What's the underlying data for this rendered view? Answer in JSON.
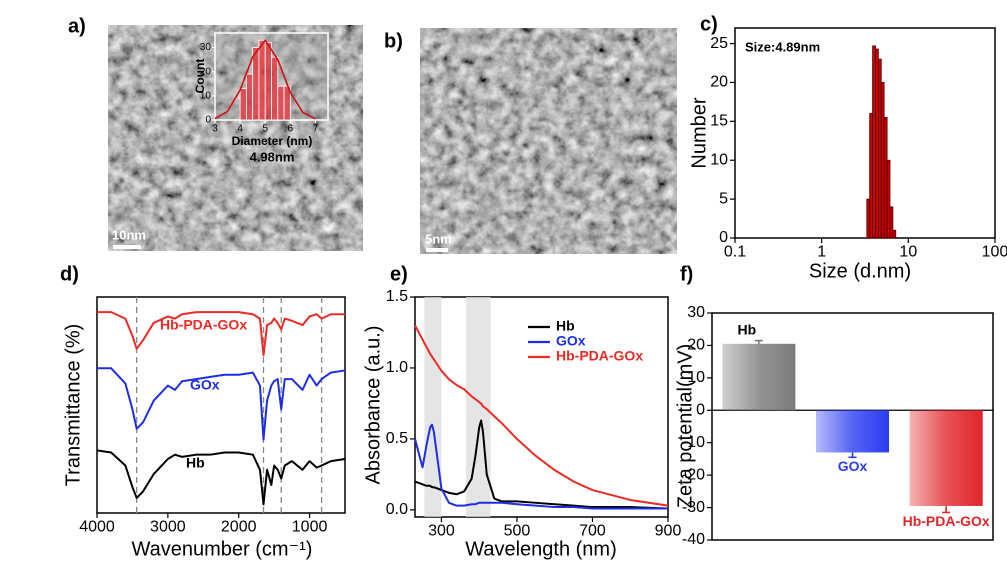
{
  "images": [
    {
      "label": "a)",
      "scale_bar": "10nm"
    },
    {
      "label": "b)",
      "scale_bar": "5nm"
    }
  ],
  "chart_data": [
    {
      "type": "histogram",
      "xlabel": "Diameter (nm)",
      "ylabel": "Count",
      "annotation": "4.98nm",
      "color": "#e8333a",
      "bins": [
        4,
        4.25,
        4.5,
        4.75,
        5,
        5.25,
        5.5,
        5.75,
        6
      ],
      "values": [
        13,
        19,
        30,
        33,
        32,
        26,
        14,
        14
      ],
      "fit": {
        "x": [
          3,
          3.5,
          4,
          4.5,
          5,
          5.5,
          6,
          6.5,
          7
        ],
        "values": [
          0.6,
          3.55,
          12.4,
          26.1,
          33,
          25,
          11.4,
          3.1,
          0.5
        ]
      },
      "xlim": [
        3,
        7.5
      ],
      "xticks": [
        3,
        4,
        5,
        6,
        7
      ],
      "ylim": [
        0,
        36
      ],
      "yticks": [
        0,
        10,
        20,
        30
      ]
    },
    {
      "type": "histogram",
      "label": "c)",
      "xlabel": "Size (d.nm)",
      "ylabel": "Number",
      "annotation": "Size:4.89nm",
      "color": "#cc0000",
      "log": true,
      "bins": [
        3.32,
        3.58,
        3.87,
        4.18,
        4.51,
        4.87,
        5.26,
        5.69,
        6.14,
        6.63,
        7.16
      ],
      "values": [
        5,
        16,
        24.7,
        24.3,
        23,
        20,
        15.5,
        10,
        4,
        1
      ],
      "xlim": [
        0.1,
        100
      ],
      "xticks": [
        0.1,
        1,
        10,
        100
      ],
      "ylim": [
        0,
        27
      ],
      "yticks": [
        0,
        5,
        10,
        15,
        20,
        25
      ]
    },
    {
      "type": "line",
      "label": "d)",
      "xlabel": "Wavenumber (cm⁻¹)",
      "ylabel": "Transmittance (%)",
      "legend": "inline",
      "x": [
        4000,
        3800,
        3600,
        3500,
        3440,
        3350,
        3200,
        3000,
        2900,
        2800,
        2600,
        2400,
        2200,
        2000,
        1800,
        1700,
        1650,
        1600,
        1540,
        1500,
        1450,
        1400,
        1350,
        1250,
        1100,
        1000,
        900,
        830,
        700,
        500
      ],
      "series": [
        {
          "name": "Hb-PDA-GOx",
          "color": "#ee2a24",
          "values": [
            93,
            93,
            90,
            82,
            76,
            80,
            88,
            91,
            90,
            92,
            93,
            93,
            93,
            93,
            92,
            90,
            73,
            87,
            88,
            90,
            88,
            85,
            90,
            89,
            87,
            91,
            92,
            90,
            92,
            92
          ]
        },
        {
          "name": "GOx",
          "color": "#1f2ee6",
          "values": [
            67,
            67,
            60,
            48,
            39,
            42,
            52,
            59,
            57,
            61,
            62,
            63,
            64,
            64,
            65,
            59,
            34,
            52,
            59,
            61,
            62,
            48,
            62,
            62,
            57,
            64,
            59,
            62,
            65,
            66
          ]
        },
        {
          "name": "Hb",
          "color": "#000000",
          "values": [
            29,
            28,
            22,
            12,
            7,
            10,
            18,
            25,
            27,
            26,
            27,
            27,
            28,
            28,
            27,
            20,
            4,
            20,
            13,
            22,
            20,
            16,
            22,
            24,
            20,
            24,
            21,
            22,
            24,
            25
          ]
        }
      ],
      "reference_lines": [
        3440,
        1650,
        1400,
        830
      ],
      "xlim": [
        4000,
        500
      ],
      "xticks": [
        4000,
        3000,
        2000,
        1000
      ],
      "ylim": [
        0,
        100
      ]
    },
    {
      "type": "line",
      "label": "e)",
      "xlabel": "Wavelength (nm)",
      "ylabel": "Absorbance (a.u.)",
      "legend": "upper right",
      "x": [
        230,
        250,
        260,
        270,
        275,
        280,
        290,
        300,
        320,
        340,
        360,
        380,
        390,
        400,
        405,
        410,
        420,
        440,
        460,
        500,
        550,
        600,
        650,
        700,
        800,
        900
      ],
      "series": [
        {
          "name": "Hb",
          "color": "#000000",
          "values": [
            0.2,
            0.18,
            0.17,
            0.17,
            0.16,
            0.16,
            0.15,
            0.14,
            0.12,
            0.11,
            0.13,
            0.22,
            0.38,
            0.58,
            0.63,
            0.55,
            0.25,
            0.08,
            0.06,
            0.06,
            0.05,
            0.04,
            0.03,
            0.02,
            0.02,
            0.01
          ]
        },
        {
          "name": "GOx",
          "color": "#1f2ee6",
          "values": [
            0.5,
            0.3,
            0.45,
            0.58,
            0.6,
            0.55,
            0.35,
            0.15,
            0.05,
            0.03,
            0.03,
            0.04,
            0.04,
            0.05,
            0.05,
            0.05,
            0.05,
            0.05,
            0.05,
            0.04,
            0.03,
            0.02,
            0.02,
            0.01,
            0.01,
            0.01
          ]
        },
        {
          "name": "Hb-PDA-GOx",
          "color": "#ee2a24",
          "values": [
            1.3,
            1.2,
            1.15,
            1.1,
            1.08,
            1.06,
            1.02,
            0.98,
            0.92,
            0.88,
            0.85,
            0.8,
            0.78,
            0.76,
            0.75,
            0.73,
            0.71,
            0.66,
            0.61,
            0.5,
            0.38,
            0.28,
            0.2,
            0.14,
            0.07,
            0.03
          ]
        }
      ],
      "bands": [
        [
          255,
          300
        ],
        [
          365,
          430
        ]
      ],
      "xlim": [
        230,
        900
      ],
      "xticks": [
        300,
        500,
        700,
        900
      ],
      "ylim": [
        -0.05,
        1.5
      ],
      "yticks": [
        {
          "value": 0,
          "label": "0.0"
        },
        0.5,
        {
          "value": 1,
          "label": "1.0"
        },
        1.5
      ]
    },
    {
      "type": "bar",
      "label": "f)",
      "ylabel": "Zeta potential(mV)",
      "categories": [
        "Hb",
        "GOx",
        "Hb-PDA-GOx"
      ],
      "values": [
        20.5,
        -13,
        -29.5
      ],
      "errors": [
        1,
        1.5,
        2
      ],
      "colors": [
        "#7a7a7a",
        "#2b3cf0",
        "#e0262b"
      ],
      "ylim": [
        -40,
        30
      ],
      "yticks": [
        -40,
        -30,
        -20,
        -10,
        0,
        10,
        20,
        30
      ]
    }
  ]
}
